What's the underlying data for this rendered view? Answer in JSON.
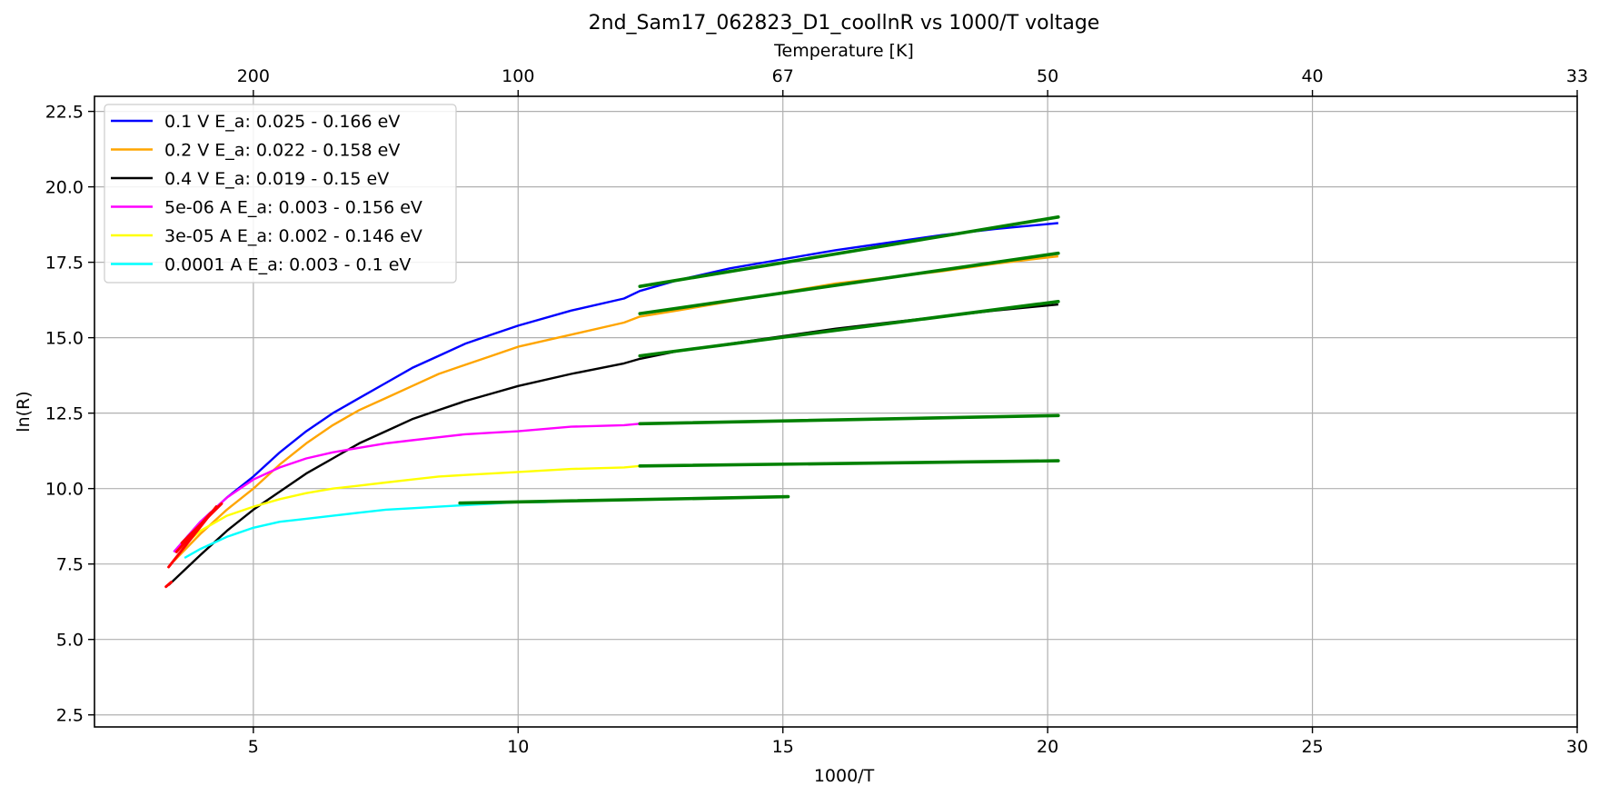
{
  "chart_data": {
    "type": "line",
    "title": "2nd_Sam17_062823_D1_coollnR vs 1000/T voltage",
    "xlabel": "1000/T",
    "ylabel": "ln(R)",
    "top_xlabel": "Temperature [K]",
    "xlim": [
      2,
      30
    ],
    "ylim": [
      2.1,
      23.0
    ],
    "xticks": [
      {
        "v": 5,
        "label": "5"
      },
      {
        "v": 10,
        "label": "10"
      },
      {
        "v": 15,
        "label": "15"
      },
      {
        "v": 20,
        "label": "20"
      },
      {
        "v": 25,
        "label": "25"
      },
      {
        "v": 30,
        "label": "30"
      }
    ],
    "yticks": [
      {
        "v": 2.5,
        "label": "2.5"
      },
      {
        "v": 5.0,
        "label": "5.0"
      },
      {
        "v": 7.5,
        "label": "7.5"
      },
      {
        "v": 10.0,
        "label": "10.0"
      },
      {
        "v": 12.5,
        "label": "12.5"
      },
      {
        "v": 15.0,
        "label": "15.0"
      },
      {
        "v": 17.5,
        "label": "17.5"
      },
      {
        "v": 20.0,
        "label": "20.0"
      },
      {
        "v": 22.5,
        "label": "22.5"
      }
    ],
    "top_ticks": [
      {
        "v": 5,
        "label": "200"
      },
      {
        "v": 10,
        "label": "100"
      },
      {
        "v": 15,
        "label": "67"
      },
      {
        "v": 20,
        "label": "50"
      },
      {
        "v": 25,
        "label": "40"
      },
      {
        "v": 30,
        "label": "33"
      }
    ],
    "grid": true,
    "legend_position": "top-left",
    "series": [
      {
        "name": "0.1 V  E_a: 0.025 - 0.166 eV",
        "color": "#0000ff",
        "x": [
          3.5,
          4.0,
          4.5,
          5.0,
          5.5,
          6.0,
          6.5,
          7.0,
          7.5,
          8.0,
          8.5,
          9.0,
          9.5,
          10.0,
          11.0,
          12.0,
          12.3,
          13.0,
          14.0,
          15.0,
          16.0,
          17.0,
          18.0,
          19.0,
          20.2
        ],
        "y": [
          7.9,
          8.9,
          9.7,
          10.4,
          11.2,
          11.9,
          12.5,
          13.0,
          13.5,
          14.0,
          14.4,
          14.8,
          15.1,
          15.4,
          15.9,
          16.3,
          16.55,
          16.9,
          17.3,
          17.6,
          17.9,
          18.15,
          18.4,
          18.6,
          18.8
        ]
      },
      {
        "name": "0.2 V  E_a: 0.022 - 0.158 eV",
        "color": "#ffa500",
        "x": [
          3.5,
          4.0,
          4.5,
          5.0,
          5.5,
          6.0,
          6.5,
          7.0,
          7.5,
          8.0,
          8.5,
          9.0,
          9.5,
          10.0,
          11.0,
          12.0,
          12.3,
          13.0,
          14.0,
          15.0,
          16.0,
          17.0,
          18.0,
          19.0,
          20.2
        ],
        "y": [
          7.6,
          8.5,
          9.3,
          10.0,
          10.8,
          11.5,
          12.1,
          12.6,
          13.0,
          13.4,
          13.8,
          14.1,
          14.4,
          14.7,
          15.1,
          15.5,
          15.7,
          15.9,
          16.2,
          16.5,
          16.8,
          17.0,
          17.2,
          17.45,
          17.7
        ]
      },
      {
        "name": "0.4 V  E_a: 0.019 - 0.15 eV",
        "color": "#000000",
        "x": [
          3.4,
          4.0,
          4.5,
          5.0,
          5.5,
          6.0,
          6.5,
          7.0,
          7.5,
          8.0,
          8.5,
          9.0,
          9.5,
          10.0,
          11.0,
          12.0,
          12.3,
          13.0,
          14.0,
          15.0,
          16.0,
          17.0,
          18.0,
          19.0,
          20.2
        ],
        "y": [
          6.8,
          7.8,
          8.6,
          9.3,
          9.9,
          10.5,
          11.0,
          11.5,
          11.9,
          12.3,
          12.6,
          12.9,
          13.15,
          13.4,
          13.8,
          14.15,
          14.3,
          14.55,
          14.8,
          15.05,
          15.3,
          15.5,
          15.7,
          15.9,
          16.1
        ]
      },
      {
        "name": "5e-06 A E_a: 0.003 - 0.156 eV",
        "color": "#ff00ff",
        "x": [
          3.5,
          4.0,
          4.5,
          5.0,
          5.5,
          6.0,
          6.5,
          7.0,
          7.5,
          8.0,
          8.5,
          9.0,
          9.5,
          10.0,
          11.0,
          12.0,
          12.3
        ],
        "y": [
          7.9,
          8.9,
          9.7,
          10.3,
          10.7,
          11.0,
          11.2,
          11.35,
          11.5,
          11.6,
          11.7,
          11.8,
          11.85,
          11.9,
          12.05,
          12.1,
          12.15
        ]
      },
      {
        "name": "3e-05 A E_a: 0.002 - 0.146 eV",
        "color": "#ffff00",
        "x": [
          3.6,
          4.0,
          4.5,
          5.0,
          5.5,
          6.0,
          6.5,
          7.0,
          7.5,
          8.0,
          8.5,
          9.0,
          9.5,
          10.0,
          11.0,
          12.0,
          12.3
        ],
        "y": [
          8.0,
          8.6,
          9.1,
          9.4,
          9.65,
          9.85,
          10.0,
          10.1,
          10.2,
          10.3,
          10.4,
          10.45,
          10.5,
          10.55,
          10.65,
          10.7,
          10.75
        ]
      },
      {
        "name": "0.0001 A E_a: 0.003 - 0.1 eV",
        "color": "#00ffff",
        "x": [
          3.7,
          4.0,
          4.5,
          5.0,
          5.5,
          6.0,
          6.5,
          7.0,
          7.5,
          8.0,
          8.5,
          9.0,
          9.5,
          10.0,
          10.5,
          11.0
        ],
        "y": [
          7.7,
          8.0,
          8.4,
          8.7,
          8.9,
          9.0,
          9.1,
          9.2,
          9.3,
          9.35,
          9.4,
          9.45,
          9.5,
          9.55,
          9.55,
          9.6
        ]
      }
    ],
    "fits": [
      {
        "color": "#008000",
        "x": [
          12.3,
          20.2
        ],
        "y": [
          16.7,
          19.0
        ]
      },
      {
        "color": "#008000",
        "x": [
          12.3,
          20.2
        ],
        "y": [
          15.8,
          17.8
        ]
      },
      {
        "color": "#008000",
        "x": [
          12.3,
          20.2
        ],
        "y": [
          14.4,
          16.2
        ]
      },
      {
        "color": "#008000",
        "x": [
          12.3,
          20.2
        ],
        "y": [
          12.15,
          12.42
        ]
      },
      {
        "color": "#008000",
        "x": [
          12.3,
          20.2
        ],
        "y": [
          10.75,
          10.92
        ]
      },
      {
        "color": "#008000",
        "x": [
          8.9,
          15.1
        ],
        "y": [
          9.52,
          9.73
        ]
      },
      {
        "color": "#ff0000",
        "x": [
          3.4,
          4.3
        ],
        "y": [
          7.4,
          9.4
        ]
      },
      {
        "color": "#ff0000",
        "x": [
          3.55,
          4.2
        ],
        "y": [
          7.9,
          9.2
        ]
      },
      {
        "color": "#ff0000",
        "x": [
          3.65,
          4.4
        ],
        "y": [
          8.2,
          9.5
        ]
      },
      {
        "color": "#ff0000",
        "x": [
          3.35,
          3.45
        ],
        "y": [
          6.75,
          6.9
        ]
      }
    ]
  }
}
